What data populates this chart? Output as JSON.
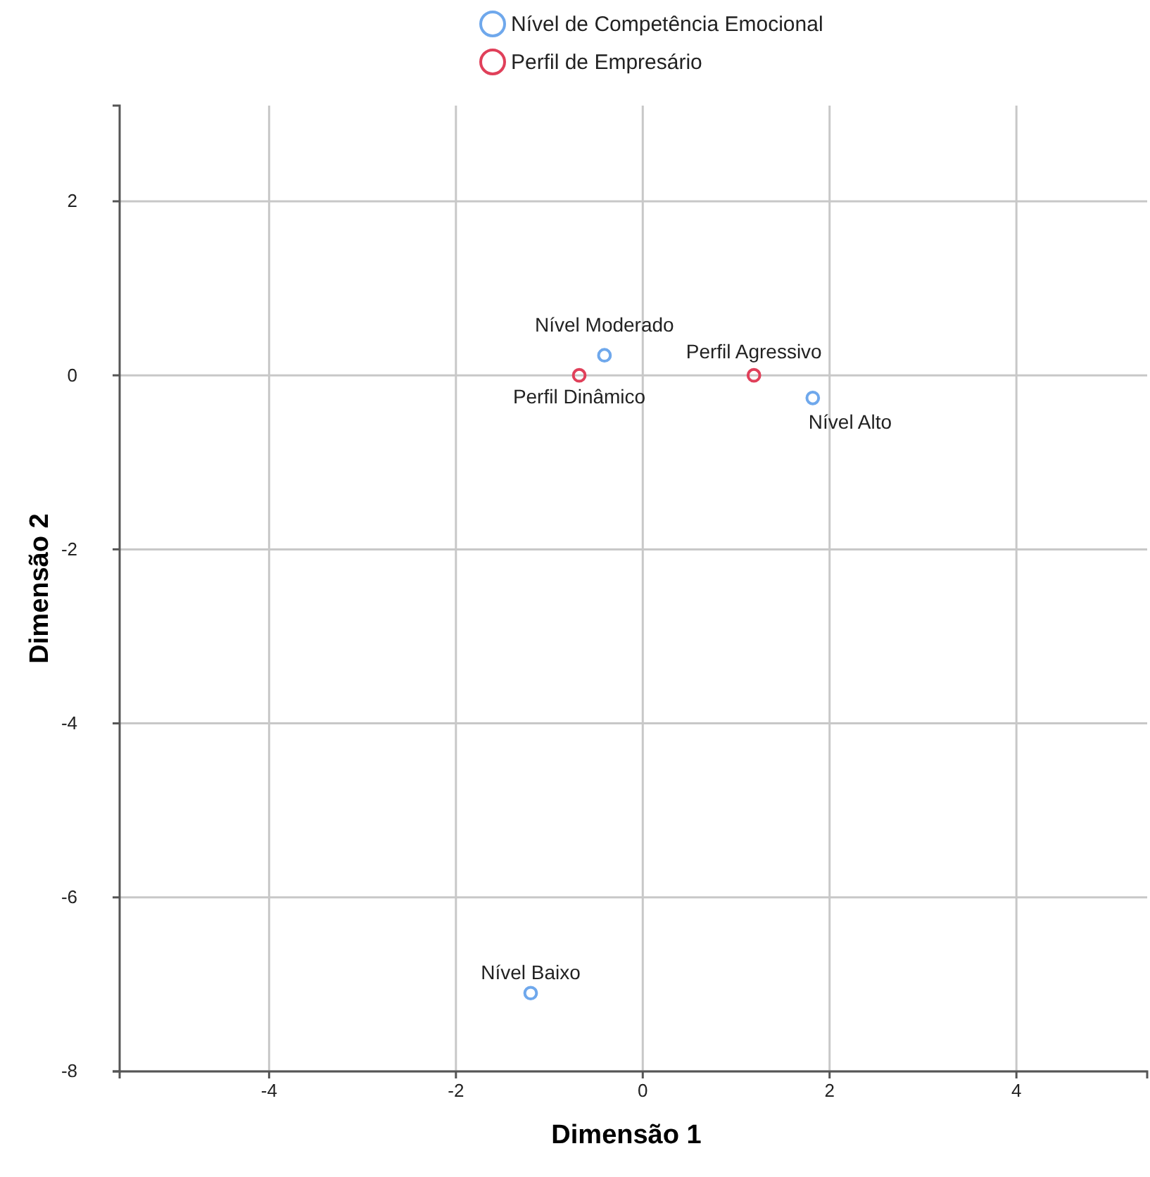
{
  "chart_data": {
    "type": "scatter",
    "xlabel": "Dimensão 1",
    "ylabel": "Dimensão 2",
    "xlim": [
      -5.6,
      5.4
    ],
    "xticks": [
      -4,
      -2,
      0,
      2,
      4
    ],
    "ylim": [
      -8,
      3.1
    ],
    "yticks": [
      -8,
      -6,
      -4,
      -2,
      0,
      2
    ],
    "grid": true,
    "legend": "top",
    "marker": "circle",
    "series": [
      {
        "name": "Nível de Competência Emocional",
        "color": "#6fa8ec",
        "x": [
          -0.41,
          1.82,
          -1.2
        ],
        "values": [
          0.23,
          -0.26,
          -7.1
        ]
      },
      {
        "name": "Perfil de Empresário",
        "color": "#e0405a",
        "x": [
          -0.68,
          1.19
        ],
        "values": [
          0,
          0
        ]
      }
    ],
    "annotations": [
      {
        "text": "Nível Moderado",
        "x": -0.41,
        "y": 0.23
      },
      {
        "text": "Nível Alto",
        "x": 1.82,
        "y": -0.26
      },
      {
        "text": "Nível Baixo",
        "x": -1.2,
        "y": -7.1
      },
      {
        "text": "Perfil Dinâmico",
        "x": -0.68,
        "y": 0
      },
      {
        "text": "Perfil Agressivo",
        "x": 1.19,
        "y": 0
      }
    ]
  }
}
